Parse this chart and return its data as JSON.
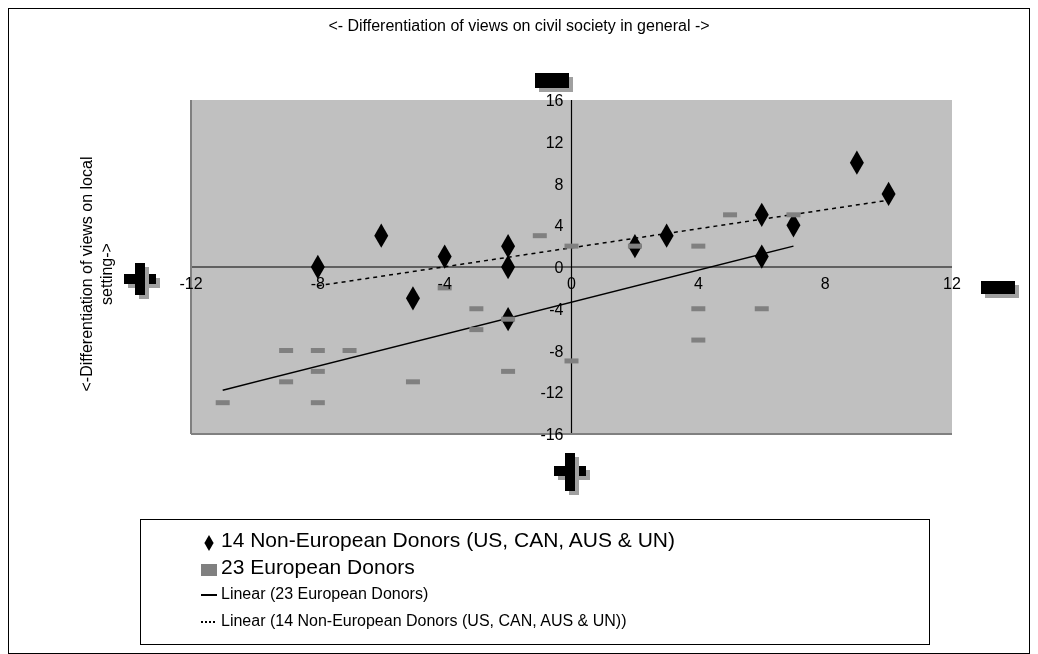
{
  "chart_data": {
    "type": "scatter",
    "xlabel": "<- Differentiation of views on civil society in general ->",
    "ylabel": "<-Differentiation of views on local setting->",
    "xlim": [
      -12,
      12
    ],
    "xticks": [
      -12,
      -8,
      -4,
      0,
      4,
      8,
      12
    ],
    "ylim": [
      -16,
      16
    ],
    "yticks": [
      -16,
      -12,
      -8,
      -4,
      0,
      4,
      8,
      12,
      16
    ],
    "legend": "bottom",
    "series": [
      {
        "name": "14 Non-European Donors (US, CAN, AUS & UN)",
        "marker": "diamond",
        "color": "#000000",
        "x": [
          -8,
          -6,
          -4,
          -5,
          -2,
          -2,
          -2,
          2,
          3,
          6,
          7,
          6,
          9,
          10
        ],
        "values": [
          0,
          3,
          1,
          -3,
          2,
          0,
          -5,
          2,
          3,
          5,
          4,
          1,
          10,
          7
        ]
      },
      {
        "name": "23 European Donors",
        "marker": "square",
        "color": "#808080",
        "x": [
          -11,
          -9,
          -9,
          -8,
          -8,
          -8,
          -7,
          -5,
          -4,
          -3,
          -3,
          -2,
          -2,
          -1,
          0,
          0,
          2,
          4,
          5,
          7,
          4,
          6,
          4
        ],
        "values": [
          -13,
          -8,
          -11,
          -8,
          -10,
          -13,
          -8,
          -11,
          -2,
          -4,
          -6,
          -5,
          -10,
          3,
          2,
          -9,
          2,
          2,
          5,
          5,
          -4,
          -4,
          -7
        ]
      },
      {
        "name": "Linear (23 European Donors)",
        "type": "line",
        "line_style": "solid",
        "color": "#000000",
        "x": [
          -11,
          7
        ],
        "values": [
          -11.8,
          2
        ]
      },
      {
        "name": "Linear (14 Non-European Donors (US, CAN, AUS & UN))",
        "type": "line",
        "line_style": "dashed",
        "color": "#000000",
        "x": [
          -8,
          10
        ],
        "values": [
          -1.8,
          6.4
        ]
      }
    ]
  }
}
